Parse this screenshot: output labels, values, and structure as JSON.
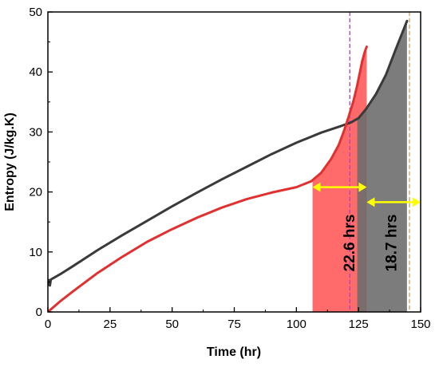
{
  "chart_data": {
    "type": "line",
    "xlabel": "Time (hr)",
    "ylabel": "Entropy (J/kg.K)",
    "xlim": [
      0,
      150
    ],
    "ylim": [
      0,
      50
    ],
    "x_ticks": [
      0,
      25,
      50,
      75,
      100,
      125,
      150
    ],
    "y_ticks": [
      0,
      10,
      20,
      30,
      40,
      50
    ],
    "grid": false,
    "legend": "none",
    "series": [
      {
        "color": "#3a3a3a",
        "x": [
          0,
          0.4,
          0.8,
          1.2,
          2,
          5,
          10,
          20,
          30,
          40,
          50,
          60,
          70,
          80,
          90,
          100,
          110,
          118,
          122,
          125,
          128,
          132,
          136,
          140,
          144.5
        ],
        "y": [
          4.5,
          5.3,
          4.4,
          5.4,
          5.6,
          6.3,
          7.6,
          10.3,
          12.8,
          15.2,
          17.6,
          19.9,
          22.1,
          24.2,
          26.3,
          28.2,
          29.9,
          31.0,
          31.6,
          32.3,
          33.8,
          36.3,
          39.5,
          43.8,
          48.5
        ]
      },
      {
        "color": "#e03030",
        "x": [
          0,
          5,
          10,
          20,
          30,
          40,
          50,
          60,
          70,
          80,
          90,
          100,
          106,
          110,
          114,
          117,
          119,
          121,
          123,
          124.5,
          125.5,
          126.5,
          127.5,
          128.3
        ],
        "y": [
          0,
          1.8,
          3.4,
          6.5,
          9.2,
          11.7,
          13.8,
          15.7,
          17.4,
          18.8,
          19.9,
          20.8,
          21.8,
          23.2,
          25.5,
          27.8,
          30.0,
          32.5,
          35.2,
          37.8,
          39.8,
          41.8,
          43.3,
          44.2
        ]
      }
    ],
    "shaded_regions": [
      {
        "x_start": 106.5,
        "x_end": 128.3,
        "color": "#ff6a6a"
      },
      {
        "x_start": 124.5,
        "x_end": 144.5,
        "color": "#6e6e6e"
      }
    ],
    "vertical_lines": [
      {
        "x": 121.5,
        "color": "#b040c0",
        "style": "dashed"
      },
      {
        "x": 145.5,
        "color": "#c8a060",
        "style": "dashed"
      }
    ],
    "arrows": [
      {
        "x_start": 106.5,
        "x_end": 128.3,
        "y": 20.8,
        "color": "#ffff00"
      },
      {
        "x_start": 128.3,
        "x_end": 150,
        "y": 18.3,
        "color": "#ffff00"
      }
    ],
    "annotations": [
      {
        "text": "22.6 hrs",
        "x": 121.5,
        "y": 11.5,
        "rotation": -90
      },
      {
        "text": "18.7 hrs",
        "x": 138.5,
        "y": 11.5,
        "rotation": -90
      }
    ]
  }
}
